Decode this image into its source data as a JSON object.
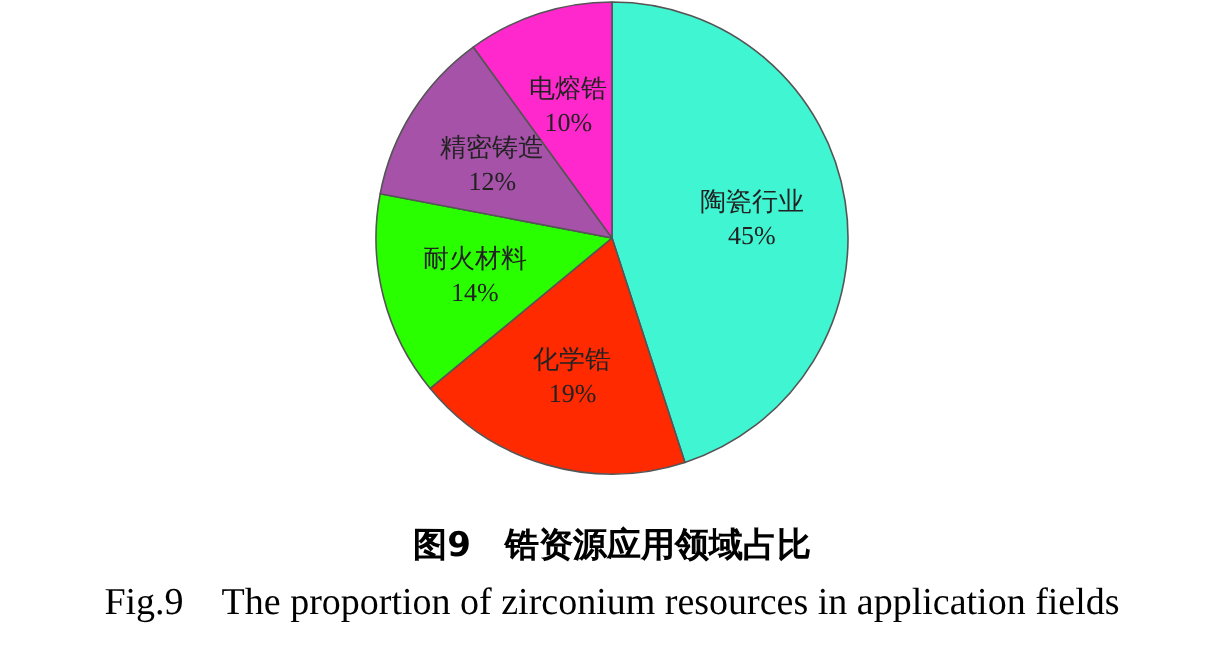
{
  "chart_data": {
    "type": "pie",
    "title": "图9　锆资源应用领域占比",
    "subtitle": "Fig.9　The proportion of zirconium resources in application fields",
    "categories": [
      "陶瓷行业",
      "化学锆",
      "耐火材料",
      "精密铸造",
      "电熔锆"
    ],
    "values": [
      45,
      19,
      14,
      12,
      10
    ],
    "value_labels": [
      "45%",
      "19%",
      "14%",
      "12%",
      "10%"
    ],
    "colors": [
      "#3ff5d2",
      "#ff2a00",
      "#2aff00",
      "#a552a8",
      "#ff28cc"
    ]
  }
}
